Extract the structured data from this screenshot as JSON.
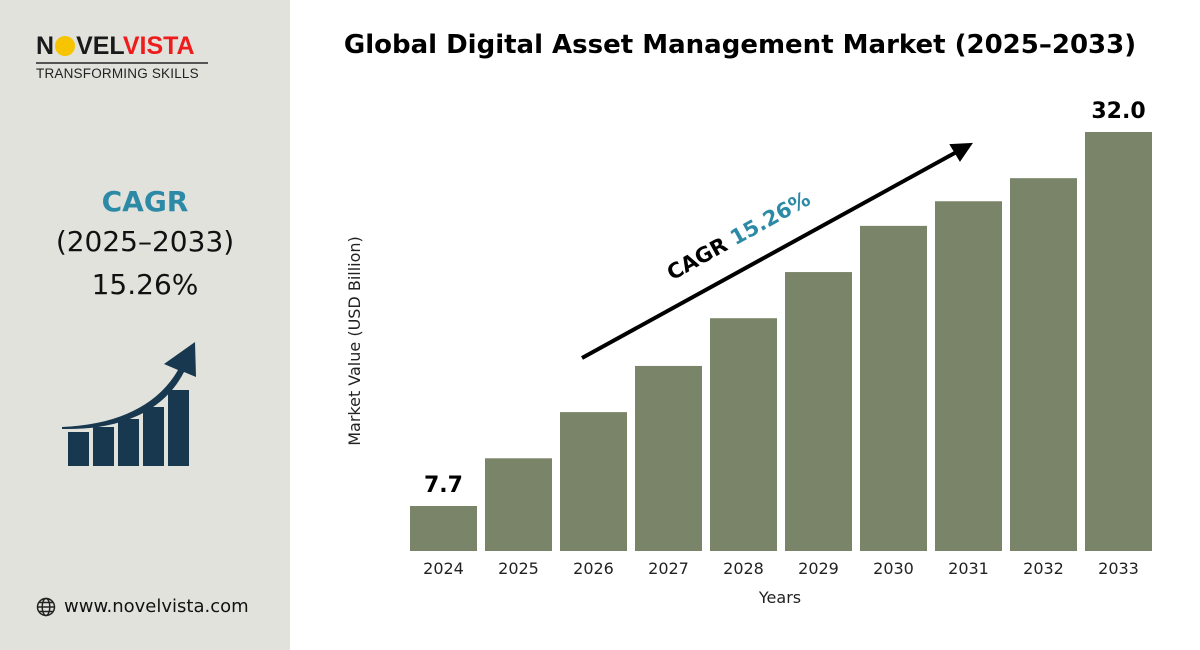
{
  "logo": {
    "text_dark_1": "N",
    "text_dark_2": "VEL",
    "text_red": "VISTA",
    "tagline": "TRANSFORMING SKILLS"
  },
  "sidebar": {
    "cagr_label": "CAGR",
    "cagr_period": "(2025–2033)",
    "cagr_value": "15.26%",
    "website": "www.novelvista.com",
    "icons": [
      "growth-chart-icon",
      "globe-icon"
    ]
  },
  "colors": {
    "bar": "#7a8468",
    "accent": "#2d8aa6",
    "brand_red": "#ee1c1c",
    "icon": "#17384f",
    "sidebar_bg": "#e2e2dd"
  },
  "chart_data": {
    "type": "bar",
    "title": "Global Digital Asset Management Market (2025–2033)",
    "xlabel": "Years",
    "ylabel": "Market Value (USD Billion)",
    "categories": [
      "2024",
      "2025",
      "2026",
      "2027",
      "2028",
      "2029",
      "2030",
      "2031",
      "2032",
      "2033"
    ],
    "values": [
      7.7,
      10.8,
      13.8,
      16.8,
      19.9,
      22.9,
      25.9,
      27.5,
      29.0,
      32.0
    ],
    "data_labels": {
      "first": "7.7",
      "last": "32.0"
    },
    "annotation": {
      "prefix": "CAGR ",
      "value": "15.26%"
    },
    "grid": false
  }
}
